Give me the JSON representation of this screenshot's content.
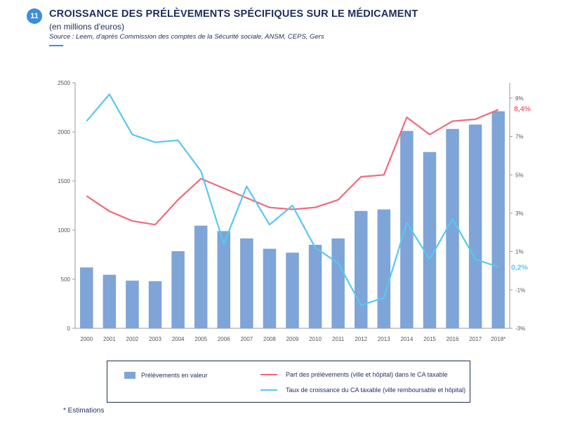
{
  "header": {
    "badge": "11",
    "title": "CROISSANCE DES PRÉLÈVEMENTS SPÉCIFIQUES SUR LE MÉDICAMENT",
    "subtitle": "(en millions d'euros)",
    "source": "Source : Leem, d'après Commission des comptes de la Sécurité sociale, ANSM, CEPS, Gers"
  },
  "colors": {
    "bars": "#7ea4d8",
    "share_line": "#ef6b7e",
    "growth_line": "#57c8f2",
    "accent": "#3a8dde",
    "text": "#1f2d5a"
  },
  "chart_data": {
    "type": "bar",
    "categories": [
      "2000",
      "2001",
      "2002",
      "2003",
      "2004",
      "2005",
      "2006",
      "2007",
      "2008",
      "2009",
      "2010",
      "2011",
      "2012",
      "2013",
      "2014",
      "2015",
      "2016",
      "2017",
      "2018*"
    ],
    "series": [
      {
        "name": "Prélèvements en valeur",
        "type": "bar",
        "axis": "left",
        "values": [
          620,
          545,
          485,
          480,
          785,
          1045,
          990,
          915,
          810,
          770,
          850,
          915,
          1195,
          1210,
          2010,
          1795,
          2030,
          2075,
          2210
        ]
      },
      {
        "name": "Part des prélèvements (ville et hôpital) dans le CA taxable",
        "type": "line",
        "axis": "right",
        "values": [
          3.9,
          3.1,
          2.6,
          2.4,
          3.7,
          4.8,
          4.3,
          3.8,
          3.3,
          3.2,
          3.3,
          3.7,
          4.9,
          5.0,
          8.0,
          7.1,
          7.8,
          7.9,
          8.4
        ]
      },
      {
        "name": "Taux de croissance du CA taxable (ville remboursable et hôpital)",
        "type": "line",
        "axis": "right",
        "values": [
          7.8,
          9.2,
          7.1,
          6.7,
          6.8,
          5.2,
          1.4,
          4.4,
          2.4,
          3.4,
          1.2,
          0.4,
          -1.8,
          -1.4,
          2.5,
          0.6,
          2.7,
          0.6,
          0.2
        ]
      }
    ],
    "y_left": {
      "ticks": [
        "0",
        "500",
        "1000",
        "1500",
        "2000",
        "2500"
      ],
      "range": [
        0,
        2500
      ]
    },
    "y_right": {
      "ticks": [
        "-3%",
        "-1%",
        "1%",
        "3%",
        "5%",
        "7%",
        "9%"
      ],
      "range": [
        -3,
        9.8
      ]
    },
    "end_labels": {
      "share": "8,4%",
      "growth": "0,2%"
    },
    "grid": false,
    "legend_position": "bottom"
  },
  "legend": {
    "bar_label": "Prélèvements en valeur",
    "share_label": "Part des prélèvements (ville et hôpital) dans le CA taxable",
    "growth_label": "Taux de croissance du CA taxable (ville remboursable et hôpital)"
  },
  "footnote": "* Estimations"
}
